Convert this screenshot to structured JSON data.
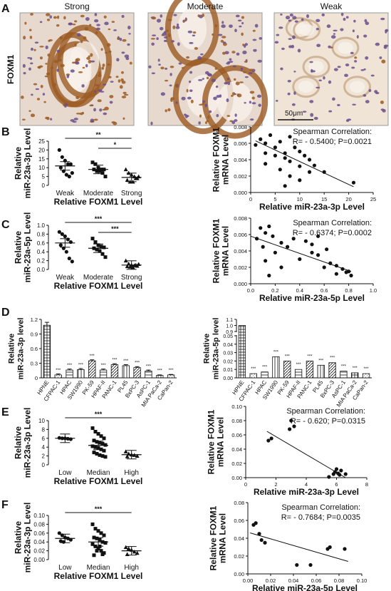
{
  "panel_letters": [
    "A",
    "B",
    "C",
    "D",
    "E",
    "F"
  ],
  "panel_a": {
    "row_label": "FOXM1",
    "columns": [
      "Strong",
      "Moderate",
      "Weak"
    ],
    "scale_bar": "50μm",
    "colors": {
      "stroma": "#e8d9cf",
      "nuclei": "#6a4e8c",
      "brown": "#9b5a22",
      "lumen": "#f7f1ea"
    }
  },
  "chart_data": [
    {
      "panel": "B-left",
      "type": "scatter",
      "categories": [
        "Weak",
        "Moderate",
        "Strong"
      ],
      "ylabel": "Relative\nmiR-23a-3p Level",
      "xlabel": "Relative FOXM1 Level",
      "ylim": [
        0,
        25
      ],
      "yticks": [
        "0",
        "5",
        "10",
        "15",
        "20",
        "25"
      ],
      "markers": [
        "circle",
        "square",
        "triangle"
      ],
      "series": [
        {
          "values": [
            [
              20,
              16,
              14,
              12,
              12,
              10,
              8,
              6,
              5,
              7
            ],
            [
              13,
              12,
              10,
              9,
              9,
              9,
              8,
              8,
              7,
              5
            ],
            [
              9,
              7,
              6,
              5,
              4,
              3,
              2,
              2,
              4,
              5
            ]
          ]
        }
      ],
      "means": [
        11,
        9,
        4.5
      ],
      "significance": [
        {
          "pair": [
            0,
            2
          ],
          "label": "**"
        },
        {
          "pair": [
            1,
            2
          ],
          "label": "*"
        }
      ]
    },
    {
      "panel": "B-right",
      "type": "scatter",
      "xlabel": "Relative miR-23a-3p Level",
      "ylabel": "Relative FOXM1\nmRNA Level",
      "xlim": [
        0,
        25
      ],
      "ylim": [
        0,
        0.008
      ],
      "xticks": [
        "0",
        "5",
        "10",
        "15",
        "20",
        "25"
      ],
      "yticks": [
        "0.000",
        "0.002",
        "0.004",
        "0.006",
        "0.008"
      ],
      "points": [
        [
          1,
          0.0058
        ],
        [
          2,
          0.0065
        ],
        [
          3,
          0.006
        ],
        [
          3,
          0.0048
        ],
        [
          4,
          0.007
        ],
        [
          5,
          0.0055
        ],
        [
          5,
          0.0045
        ],
        [
          6,
          0.0062
        ],
        [
          7,
          0.0048
        ],
        [
          7,
          0.0042
        ],
        [
          8,
          0.0068
        ],
        [
          8,
          0.0038
        ],
        [
          9,
          0.0055
        ],
        [
          10,
          0.005
        ],
        [
          10,
          0.0032
        ],
        [
          11,
          0.0045
        ],
        [
          12,
          0.004
        ],
        [
          12,
          0.0025
        ],
        [
          13,
          0.0033
        ],
        [
          6,
          0.0028
        ],
        [
          8,
          0.002
        ],
        [
          10,
          0.0015
        ],
        [
          15,
          0.0025
        ],
        [
          7,
          0.0008
        ],
        [
          21,
          0.0012
        ],
        [
          3,
          0.0035
        ]
      ],
      "trend": [
        [
          1,
          0.0063
        ],
        [
          21,
          0.0007
        ]
      ],
      "annotation": {
        "line1": "Spearman Correlation:",
        "line2": "R= - 0.5400;  P=0.0021"
      }
    },
    {
      "panel": "C-left",
      "type": "scatter",
      "categories": [
        "Weak",
        "Moderate",
        "Strong"
      ],
      "ylabel": "Relative\nmiR-23a-5p Level",
      "xlabel": "Relative FOXM1 Level",
      "ylim": [
        0,
        1.0
      ],
      "yticks": [
        "0.0",
        "0.2",
        "0.4",
        "0.6",
        "0.8",
        "1.0"
      ],
      "markers": [
        "circle",
        "square",
        "triangle"
      ],
      "series": [
        {
          "values": [
            [
              0.85,
              0.8,
              0.75,
              0.68,
              0.62,
              0.55,
              0.48,
              0.4,
              0.25,
              0.18
            ],
            [
              0.7,
              0.62,
              0.55,
              0.52,
              0.5,
              0.48,
              0.45,
              0.42,
              0.35,
              0.28
            ],
            [
              0.2,
              0.13,
              0.1,
              0.09,
              0.08,
              0.07,
              0.06,
              0.05,
              0.1,
              0.12
            ]
          ]
        }
      ],
      "means": [
        0.6,
        0.48,
        0.1
      ],
      "significance": [
        {
          "pair": [
            0,
            2
          ],
          "label": "***"
        },
        {
          "pair": [
            1,
            2
          ],
          "label": "***"
        }
      ]
    },
    {
      "panel": "C-right",
      "type": "scatter",
      "xlabel": "Relative miR-23a-5p Level",
      "ylabel": "Relative FOXM1\nmRNA Level",
      "xlim": [
        0,
        1.0
      ],
      "ylim": [
        0,
        0.008
      ],
      "xticks": [
        "0.0",
        "0.2",
        "0.4",
        "0.6",
        "0.8",
        "1.0"
      ],
      "yticks": [
        "0.000",
        "0.002",
        "0.004",
        "0.006",
        "0.008"
      ],
      "points": [
        [
          0.05,
          0.0055
        ],
        [
          0.08,
          0.0068
        ],
        [
          0.12,
          0.0062
        ],
        [
          0.15,
          0.007
        ],
        [
          0.1,
          0.0045
        ],
        [
          0.18,
          0.0058
        ],
        [
          0.2,
          0.0038
        ],
        [
          0.25,
          0.005
        ],
        [
          0.3,
          0.0045
        ],
        [
          0.35,
          0.0055
        ],
        [
          0.4,
          0.003
        ],
        [
          0.45,
          0.0052
        ],
        [
          0.5,
          0.0048
        ],
        [
          0.55,
          0.0035
        ],
        [
          0.6,
          0.002
        ],
        [
          0.65,
          0.0025
        ],
        [
          0.7,
          0.0022
        ],
        [
          0.75,
          0.0018
        ],
        [
          0.8,
          0.0015
        ],
        [
          0.82,
          0.001
        ],
        [
          0.15,
          0.001
        ],
        [
          0.25,
          0.002
        ],
        [
          0.55,
          0.0058
        ],
        [
          0.62,
          0.0042
        ],
        [
          0.12,
          0.0028
        ],
        [
          0.7,
          0.0012
        ],
        [
          0.78,
          0.0014
        ],
        [
          0.5,
          0.0038
        ]
      ],
      "trend": [
        [
          0.0,
          0.0058
        ],
        [
          0.82,
          0.0015
        ]
      ],
      "annotation": {
        "line1": "Spearman Correlation:",
        "line2": "R= - 0.6374;  P=0.0002"
      }
    },
    {
      "panel": "D-left",
      "type": "bar",
      "ylabel": "Relative\nmiR-23a-3p level",
      "ylim": [
        0,
        1.2
      ],
      "yticks": [
        "0",
        "0.3",
        "0.6",
        "0.9",
        "1.2"
      ],
      "categories": [
        "HPNE",
        "CFPAC-1",
        "HPAC",
        "SW1990",
        "PK-59",
        "HPAF-II",
        "PANC-1",
        "PL45",
        "BxPC-3",
        "AsPC-1",
        "MIA PaCa-2",
        "CaPan-2"
      ],
      "values": [
        1.08,
        0.06,
        0.16,
        0.17,
        0.35,
        0.16,
        0.27,
        0.25,
        0.21,
        0.14,
        0.05,
        0.06
      ],
      "errors": [
        0.06,
        0.02,
        0.02,
        0.02,
        0.02,
        0.02,
        0.02,
        0.02,
        0.02,
        0.02,
        0.01,
        0.01
      ],
      "sig": [
        "",
        "***",
        "***",
        "***",
        "***",
        "***",
        "***",
        "***",
        "***",
        "***",
        "***",
        "***"
      ]
    },
    {
      "panel": "D-right",
      "type": "bar",
      "ylabel": "Relative\nmiR-23a-5p level",
      "ylim": [
        0,
        1.1
      ],
      "yticks": [
        "0.00",
        "0.01",
        "0.02",
        "0.03",
        "0.04",
        "0.05",
        "0.9",
        "1.0",
        "1.1"
      ],
      "broken_axis": true,
      "categories": [
        "HPNE",
        "CFPAC-1",
        "HPAC",
        "SW1990",
        "PK-59",
        "HPAF-II",
        "PANC-1",
        "PL45",
        "BxPC-3",
        "AsPC-1",
        "MIA PaCa-2",
        "CaPan-2"
      ],
      "values": [
        1.0,
        0.005,
        0.007,
        0.025,
        0.02,
        0.01,
        0.02,
        0.015,
        0.018,
        0.008,
        0.006,
        0.005
      ],
      "sig": [
        "",
        "***",
        "***",
        "***",
        "***",
        "***",
        "***",
        "***",
        "***",
        "***",
        "***",
        "***"
      ]
    },
    {
      "panel": "E-left",
      "type": "scatter",
      "categories": [
        "Low",
        "Median",
        "High"
      ],
      "ylabel": "Relative\nmiR-23a-3p Level",
      "xlabel": "Relative FOXM1 Level",
      "ylim": [
        0,
        10
      ],
      "yticks": [
        "0",
        "2",
        "4",
        "6",
        "8",
        "10"
      ],
      "markers": [
        "circle",
        "square",
        "triangle"
      ],
      "series": [
        {
          "values": [
            [
              6.1,
              6.0,
              6.0,
              5.9,
              5.8
            ],
            [
              8.3,
              7.5,
              7.0,
              6.5,
              6.0,
              5.5,
              5.2,
              5.0,
              4.8,
              4.5,
              4.2,
              4.0,
              3.8,
              3.5,
              3.2,
              2.8,
              2.5,
              2.2,
              2.0,
              1.8
            ],
            [
              3.0,
              2.5,
              2.3,
              2.2,
              2.0,
              1.9
            ]
          ]
        }
      ],
      "means": [
        6.0,
        4.4,
        2.3
      ],
      "significance": [
        {
          "pair": [
            0,
            2
          ],
          "label": "***"
        }
      ]
    },
    {
      "panel": "E-right",
      "type": "scatter",
      "xlabel": "Relative miR-23a-3p Level",
      "ylabel": "Relative FOXM1\nmRNA Level",
      "xlim": [
        0,
        8
      ],
      "ylim": [
        0,
        0.1
      ],
      "xticks": [
        "0",
        "2",
        "4",
        "6",
        "8"
      ],
      "yticks": [
        "0.00",
        "0.02",
        "0.04",
        "0.06",
        "0.08",
        "0.10"
      ],
      "points": [
        [
          1.5,
          0.052
        ],
        [
          1.7,
          0.055
        ],
        [
          2.9,
          0.068
        ],
        [
          3.0,
          0.08
        ],
        [
          3.2,
          0.072
        ],
        [
          5.8,
          0.005
        ],
        [
          5.9,
          0.008
        ],
        [
          6.0,
          0.012
        ],
        [
          6.1,
          0.006
        ],
        [
          6.3,
          0.01
        ],
        [
          6.2,
          0.004
        ],
        [
          5.5,
          0.001
        ],
        [
          6.6,
          0.005
        ]
      ],
      "trend": [
        [
          1.4,
          0.065
        ],
        [
          6.6,
          0.0
        ]
      ],
      "annotation": {
        "line1": "Spearman Correlation:",
        "line2": "R= - 0.620;  P=0.0315"
      }
    },
    {
      "panel": "F-left",
      "type": "scatter",
      "categories": [
        "Low",
        "Median",
        "High"
      ],
      "ylabel": "Relative\nmiR-23a-3p Level",
      "xlabel": "Relative FOXM1 Level",
      "ylim": [
        0,
        0.1
      ],
      "yticks": [
        "0.00",
        "0.02",
        "0.04",
        "0.06",
        "0.08",
        "0.10"
      ],
      "markers": [
        "circle",
        "square",
        "triangle"
      ],
      "series": [
        {
          "values": [
            [
              0.06,
              0.055,
              0.05,
              0.048,
              0.045,
              0.042,
              0.04
            ],
            [
              0.08,
              0.07,
              0.065,
              0.06,
              0.055,
              0.05,
              0.048,
              0.045,
              0.04,
              0.038,
              0.035,
              0.03,
              0.025,
              0.02,
              0.015,
              0.01,
              0.02,
              0.03,
              0.012
            ],
            [
              0.028,
              0.025,
              0.022,
              0.018,
              0.015,
              0.012
            ]
          ]
        }
      ],
      "means": [
        0.048,
        0.04,
        0.02
      ],
      "significance": [
        {
          "pair": [
            0,
            2
          ],
          "label": "***"
        }
      ]
    },
    {
      "panel": "F-right",
      "type": "scatter",
      "xlabel": "Relative miR-23a-5p Level",
      "ylabel": "Relative FOXM1\nmRNA Level",
      "xlim": [
        0,
        0.1
      ],
      "ylim": [
        0,
        0.08
      ],
      "xticks": [
        "0.00",
        "0.02",
        "0.04",
        "0.06",
        "0.08",
        "0.10"
      ],
      "yticks": [
        "0.00",
        "0.02",
        "0.04",
        "0.06",
        "0.08"
      ],
      "points": [
        [
          0.005,
          0.055
        ],
        [
          0.007,
          0.057
        ],
        [
          0.01,
          0.045
        ],
        [
          0.012,
          0.038
        ],
        [
          0.015,
          0.035
        ],
        [
          0.043,
          0.01
        ],
        [
          0.055,
          0.01
        ],
        [
          0.07,
          0.028
        ],
        [
          0.072,
          0.03
        ],
        [
          0.085,
          0.028
        ]
      ],
      "trend": [
        [
          0.002,
          0.046
        ],
        [
          0.088,
          0.014
        ]
      ],
      "annotation": {
        "line1": "Spearman Correlation:",
        "line2": "R= - 0.7684;  P=0.0035"
      }
    }
  ]
}
